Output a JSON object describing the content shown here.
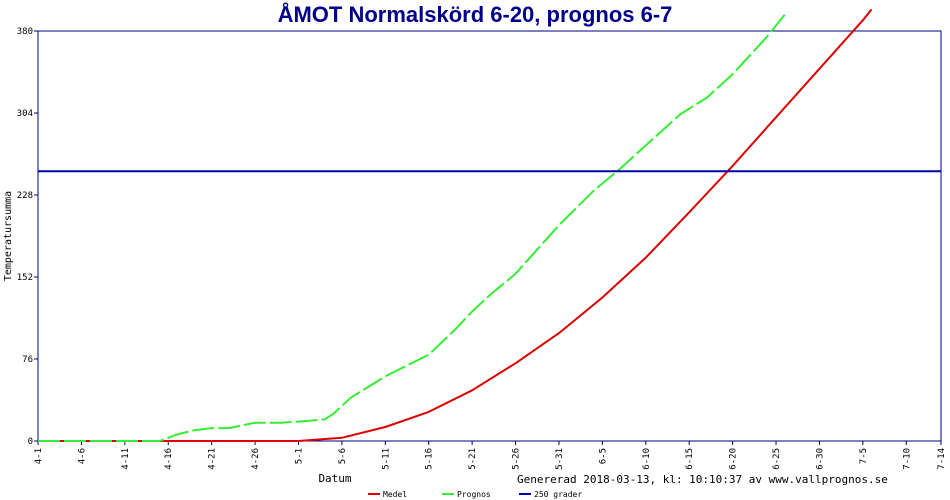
{
  "chart_data": {
    "type": "line",
    "title": "ÅMOT Normalskörd 6-20, prognos 6-7",
    "xlabel": "Datum",
    "ylabel": "Temperatursumma",
    "ylim": [
      0,
      380
    ],
    "yticks": [
      0,
      76,
      152,
      228,
      304,
      380
    ],
    "x_axis": {
      "start": "2018-04-01",
      "end": "2018-07-14"
    },
    "xtick_labels": [
      "4-1",
      "4-6",
      "4-11",
      "4-16",
      "4-21",
      "4-26",
      "5-1",
      "5-6",
      "5-11",
      "5-16",
      "5-21",
      "5-26",
      "5-31",
      "6-5",
      "6-10",
      "6-15",
      "6-20",
      "6-25",
      "6-30",
      "7-5",
      "7-10",
      "7-14"
    ],
    "grid": false,
    "legend_position": "bottom",
    "series": [
      {
        "name": "Medel",
        "color": "#dd0000",
        "style": "solid",
        "x": [
          "2018-04-01",
          "2018-04-16",
          "2018-05-01",
          "2018-05-06",
          "2018-05-11",
          "2018-05-16",
          "2018-05-21",
          "2018-05-26",
          "2018-05-31",
          "2018-06-05",
          "2018-06-10",
          "2018-06-15",
          "2018-06-20",
          "2018-06-25",
          "2018-06-30",
          "2018-07-05",
          "2018-07-06"
        ],
        "values": [
          0,
          0,
          0,
          3,
          13,
          27,
          47,
          72,
          100,
          133,
          170,
          212,
          255,
          300,
          345,
          390,
          400
        ]
      },
      {
        "name": "Prognos",
        "color": "#33ee33",
        "style": "dashed",
        "x": [
          "2018-04-01",
          "2018-04-15",
          "2018-04-16",
          "2018-04-17",
          "2018-04-19",
          "2018-04-21",
          "2018-04-23",
          "2018-04-26",
          "2018-04-29",
          "2018-05-01",
          "2018-05-04",
          "2018-05-05",
          "2018-05-07",
          "2018-05-09",
          "2018-05-11",
          "2018-05-13",
          "2018-05-16",
          "2018-05-19",
          "2018-05-21",
          "2018-05-23",
          "2018-05-26",
          "2018-05-31",
          "2018-06-04",
          "2018-06-07",
          "2018-06-10",
          "2018-06-14",
          "2018-06-17",
          "2018-06-20",
          "2018-06-24",
          "2018-06-26"
        ],
        "values": [
          0,
          0,
          3,
          6,
          10,
          12,
          12,
          17,
          17,
          18,
          20,
          25,
          40,
          50,
          60,
          68,
          80,
          103,
          120,
          135,
          155,
          200,
          232,
          252,
          274,
          303,
          318,
          340,
          375,
          395
        ]
      },
      {
        "name": "250 grader",
        "color": "#0000aa",
        "style": "solid",
        "x": [
          "2018-04-01",
          "2018-07-14"
        ],
        "values": [
          250,
          250
        ]
      }
    ]
  },
  "footer": {
    "generated": "Genererad 2018-03-13, kl: 10:10:37 av www.vallprognos.se"
  }
}
